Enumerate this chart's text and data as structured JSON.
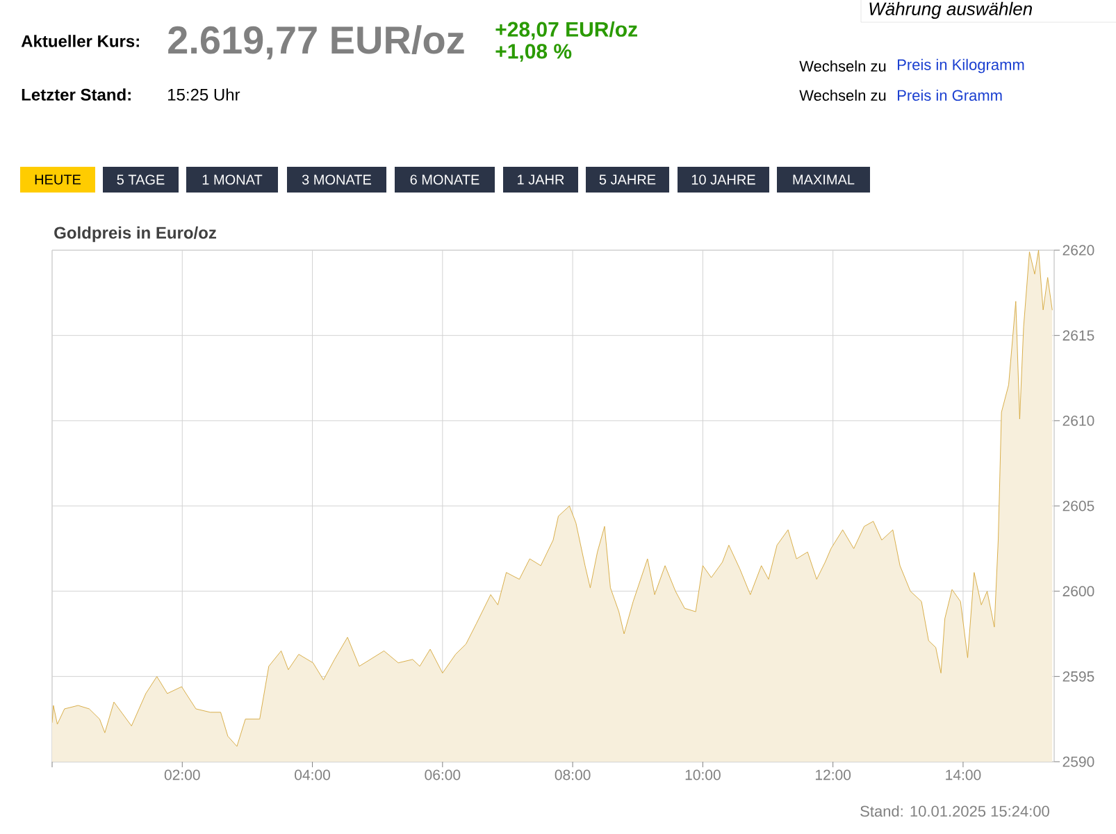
{
  "chart_data": {
    "type": "area",
    "title": "Goldpreis in Euro/oz",
    "annotations": [
      "Aktueller Kurs:",
      "2.619,77 EUR/oz",
      "+28,07 EUR/oz",
      "+1,08 %",
      "Letzter Stand:",
      "15:25 Uhr",
      "Währung auswählen",
      "Wechseln zu",
      "Preis in Kilogramm",
      "Wechseln zu",
      "Preis in Gramm",
      "HEUTE",
      "5 TAGE",
      "1 MONAT",
      "3 MONATE",
      "6 MONATE",
      "1 JAHR",
      "5 JAHRE",
      "10 JAHRE",
      "MAXIMAL",
      "Stand: 10.01.2025 15:24:00"
    ],
    "x": [
      0.0,
      0.02,
      0.08,
      0.19,
      0.4,
      0.57,
      0.73,
      0.81,
      0.95,
      1.22,
      1.44,
      1.61,
      1.77,
      1.99,
      2.21,
      2.43,
      2.59,
      2.7,
      2.84,
      2.97,
      3.19,
      3.33,
      3.52,
      3.63,
      3.79,
      4.01,
      4.17,
      4.34,
      4.54,
      4.72,
      4.89,
      5.1,
      5.32,
      5.54,
      5.65,
      5.81,
      6.0,
      6.2,
      6.36,
      6.52,
      6.74,
      6.85,
      6.98,
      7.18,
      7.34,
      7.51,
      7.7,
      7.78,
      7.95,
      8.05,
      8.19,
      8.27,
      8.38,
      8.49,
      8.58,
      8.71,
      8.79,
      8.93,
      9.15,
      9.26,
      9.42,
      9.58,
      9.72,
      9.89,
      10.0,
      10.13,
      10.3,
      10.4,
      10.57,
      10.73,
      10.9,
      11.01,
      11.14,
      11.31,
      11.44,
      11.61,
      11.75,
      11.88,
      11.97,
      12.15,
      12.32,
      12.48,
      12.62,
      12.75,
      12.92,
      13.03,
      13.19,
      13.36,
      13.47,
      13.58,
      13.66,
      13.72,
      13.83,
      13.96,
      14.07,
      14.17,
      14.28,
      14.37,
      14.48,
      14.54,
      14.59,
      14.7,
      14.81,
      14.87,
      14.93,
      15.02,
      15.1,
      15.16,
      15.23,
      15.3,
      15.37
    ],
    "values": [
      2592.3,
      2593.3,
      2592.2,
      2593.1,
      2593.3,
      2593.1,
      2592.5,
      2591.7,
      2593.5,
      2592.1,
      2594.0,
      2595.0,
      2594.0,
      2594.4,
      2593.1,
      2592.9,
      2592.9,
      2591.5,
      2590.9,
      2592.5,
      2592.5,
      2595.6,
      2596.5,
      2595.4,
      2596.3,
      2595.8,
      2594.8,
      2596.0,
      2597.3,
      2595.6,
      2596.0,
      2596.5,
      2595.8,
      2596.0,
      2595.6,
      2596.6,
      2595.2,
      2596.3,
      2596.9,
      2598.1,
      2599.8,
      2599.2,
      2601.1,
      2600.7,
      2601.9,
      2601.5,
      2603.0,
      2604.4,
      2605.0,
      2604.0,
      2601.5,
      2600.2,
      2602.3,
      2603.8,
      2600.2,
      2598.8,
      2597.5,
      2599.4,
      2601.9,
      2599.8,
      2601.5,
      2600.0,
      2599.0,
      2598.8,
      2601.5,
      2600.8,
      2601.7,
      2602.7,
      2601.3,
      2599.8,
      2601.5,
      2600.7,
      2602.7,
      2603.6,
      2601.9,
      2602.3,
      2600.7,
      2601.7,
      2602.5,
      2603.6,
      2602.5,
      2603.8,
      2604.1,
      2603.0,
      2603.6,
      2601.5,
      2600.0,
      2599.4,
      2597.1,
      2596.7,
      2595.2,
      2598.4,
      2600.1,
      2599.4,
      2596.1,
      2601.1,
      2599.2,
      2600.0,
      2597.9,
      2603.0,
      2610.5,
      2612.1,
      2617.0,
      2610.1,
      2615.5,
      2619.9,
      2618.6,
      2620.0,
      2616.5,
      2618.4,
      2616.5
    ],
    "color": "#d4a73a",
    "xlim": [
      0,
      15.4
    ],
    "xticks": [
      {
        "value": 0,
        "label": null
      },
      {
        "value": 2,
        "label": "02:00"
      },
      {
        "value": 4,
        "label": "04:00"
      },
      {
        "value": 6,
        "label": "06:00"
      },
      {
        "value": 8,
        "label": "08:00"
      },
      {
        "value": 10,
        "label": "10:00"
      },
      {
        "value": 12,
        "label": "12:00"
      },
      {
        "value": 14,
        "label": "14:00"
      }
    ],
    "ylim": [
      2590,
      2620
    ],
    "yticks": [
      2590,
      2595,
      2600,
      2605,
      2610,
      2615,
      2620
    ],
    "grid": true
  }
}
